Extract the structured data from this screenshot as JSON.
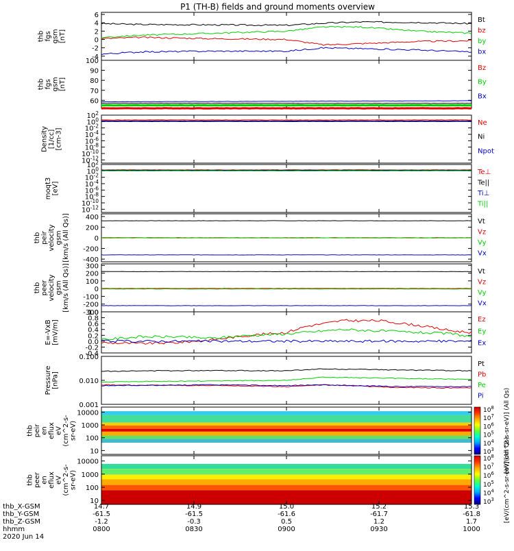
{
  "title": "P1 (TH-B) fields and ground moments overview",
  "footer": {
    "row_labels": [
      "thb_X-GSM",
      "thb_Y-GSM",
      "thb_Z-GSM",
      "hhmm",
      "2020 Jun 14"
    ],
    "columns": [
      {
        "x": "14.7",
        "y": "-61.5",
        "z": "-1.2",
        "hhmm": "0800"
      },
      {
        "x": "14.9",
        "y": "-61.5",
        "z": "-0.3",
        "hhmm": "0830"
      },
      {
        "x": "15.0",
        "y": "-61.6",
        "z": "0.5",
        "hhmm": "0900"
      },
      {
        "x": "15.2",
        "y": "-61.7",
        "z": "1.2",
        "hhmm": "0930"
      },
      {
        "x": "15.3",
        "y": "-61.8",
        "z": "1.7",
        "hhmm": "1000"
      }
    ]
  },
  "colors": {
    "black": "#000000",
    "red": "#e00000",
    "green": "#00d000",
    "blue": "#0000cc"
  },
  "colorbar": {
    "ticks": [
      "10^8",
      "10^7",
      "10^6",
      "10^5",
      "10^4",
      "10^3"
    ],
    "label": "[eV/(cm^2-s-sr-eV)] (All Qs)",
    "panel_labels": [
      "[eV/(cm^2-s-sr-eV)] (All Qs)",
      "[eV/(cm^2-s-sr-eV)] (All Qs)"
    ]
  },
  "chart_data": [
    {
      "type": "line",
      "ylabel": [
        "thb",
        "fgs",
        "gsm",
        "[nT]"
      ],
      "ylim": [
        -5,
        6.5
      ],
      "yticks": [
        "6",
        "4",
        "2",
        "0",
        "-2",
        "-4"
      ],
      "series": [
        {
          "name": "Bt",
          "color": "#000000",
          "x": [
            0,
            0.1,
            0.3,
            0.5,
            0.6,
            0.7,
            0.85,
            1.0
          ],
          "y": [
            3.8,
            3.6,
            3.5,
            3.4,
            3.9,
            4.2,
            4.1,
            3.8
          ]
        },
        {
          "name": "bz",
          "color": "#e00000",
          "x": [
            0,
            0.1,
            0.3,
            0.5,
            0.6,
            0.7,
            0.85,
            1.0
          ],
          "y": [
            0.2,
            0.5,
            0.2,
            0.0,
            -1.3,
            -1.0,
            -0.5,
            -0.3
          ]
        },
        {
          "name": "by",
          "color": "#00d000",
          "x": [
            0,
            0.1,
            0.3,
            0.5,
            0.6,
            0.7,
            0.85,
            1.0
          ],
          "y": [
            0.5,
            1.0,
            1.5,
            2.0,
            3.0,
            3.0,
            2.0,
            1.5
          ]
        },
        {
          "name": "bx",
          "color": "#0000cc",
          "x": [
            0,
            0.1,
            0.3,
            0.5,
            0.6,
            0.7,
            0.85,
            1.0
          ],
          "y": [
            -3.5,
            -3.0,
            -2.8,
            -2.8,
            -2.0,
            -2.2,
            -2.5,
            -3.0
          ]
        }
      ]
    },
    {
      "type": "line",
      "ylabel": [
        "thb",
        "fgs",
        "gsm",
        "[nT]"
      ],
      "ylim": [
        52,
        100
      ],
      "yticks": [
        "100",
        "90",
        "80",
        "70",
        "60"
      ],
      "series": [
        {
          "name": "Bz",
          "color": "#e00000",
          "x": [
            0,
            1
          ],
          "y": [
            52,
            52
          ]
        },
        {
          "name": "By",
          "color": "#00d000",
          "x": [
            0,
            1
          ],
          "y": [
            55,
            55
          ]
        },
        {
          "name": "Bx",
          "color": "#0000cc",
          "x": [
            0,
            0.5,
            1
          ],
          "y": [
            58.5,
            59,
            59.5
          ]
        },
        {
          "name": "",
          "color": "#000000",
          "x": [
            0,
            1
          ],
          "y": [
            57,
            57
          ]
        }
      ]
    },
    {
      "type": "line",
      "ylabel": [
        "Density",
        "[1/cc]",
        "[cm-3]"
      ],
      "ylim": [
        -13,
        2
      ],
      "yticks": [
        "10^2",
        "10^0",
        "10^-2",
        "10^-4",
        "10^-6",
        "10^-8",
        "10^-10",
        "10^-12"
      ],
      "series": [
        {
          "name": "Ne",
          "color": "#e00000",
          "x": [
            0,
            1
          ],
          "y": [
            0.5,
            0.5
          ]
        },
        {
          "name": "Ni",
          "color": "#000000",
          "x": [
            0,
            1
          ],
          "y": [
            0.2,
            0.2
          ]
        },
        {
          "name": "Npot",
          "color": "#0000cc",
          "x": [
            0,
            1
          ],
          "y": [
            0.0,
            0.0
          ]
        }
      ]
    },
    {
      "type": "line",
      "ylabel": [
        "moqt3",
        "[eV]"
      ],
      "ylim": [
        -13,
        2
      ],
      "yticks": [
        "10^2",
        "10^0",
        "10^-2",
        "10^-4",
        "10^-6",
        "10^-8",
        "10^-10",
        "10^-12"
      ],
      "series": [
        {
          "name": "Te⊥",
          "color": "#e00000",
          "x": [
            0,
            1
          ],
          "y": [
            0.3,
            0.3
          ]
        },
        {
          "name": "Te||",
          "color": "#000000",
          "x": [
            0,
            1
          ],
          "y": [
            0.2,
            0.2
          ]
        },
        {
          "name": "Ti⊥",
          "color": "#0000cc",
          "x": [
            0,
            1
          ],
          "y": [
            0.1,
            0.1
          ]
        },
        {
          "name": "Ti||",
          "color": "#00d000",
          "x": [
            0,
            1
          ],
          "y": [
            0.0,
            0.0
          ]
        }
      ]
    },
    {
      "type": "line",
      "ylabel": [
        "thb",
        "peir",
        "velocity",
        "gsm",
        "[km/s (All Qs)]"
      ],
      "ylim": [
        -450,
        450
      ],
      "yticks": [
        "400",
        "200",
        "0",
        "-200",
        "-400"
      ],
      "series": [
        {
          "name": "Vt",
          "color": "#000000",
          "x": [
            0,
            1
          ],
          "y": [
            320,
            320
          ]
        },
        {
          "name": "Vz",
          "color": "#e00000",
          "x": [
            0,
            1
          ],
          "y": [
            2,
            2
          ]
        },
        {
          "name": "Vy",
          "color": "#00d000",
          "x": [
            0,
            1
          ],
          "y": [
            -2,
            -2
          ]
        },
        {
          "name": "Vx",
          "color": "#0000cc",
          "x": [
            0,
            1
          ],
          "y": [
            -320,
            -320
          ]
        }
      ]
    },
    {
      "type": "line",
      "ylabel": [
        "thb",
        "peer",
        "velocity",
        "gsm",
        "[km/s (All Qs)]"
      ],
      "ylim": [
        -300,
        320
      ],
      "yticks": [
        "300",
        "200",
        "100",
        "0",
        "-100",
        "-200",
        "-300"
      ],
      "series": [
        {
          "name": "Vt",
          "color": "#000000",
          "x": [
            0,
            1
          ],
          "y": [
            220,
            220
          ]
        },
        {
          "name": "Vz",
          "color": "#e00000",
          "x": [
            0,
            1
          ],
          "y": [
            2,
            2
          ]
        },
        {
          "name": "Vy",
          "color": "#00d000",
          "x": [
            0,
            1
          ],
          "y": [
            -5,
            -5
          ]
        },
        {
          "name": "Vx",
          "color": "#0000cc",
          "x": [
            0,
            1
          ],
          "y": [
            -220,
            -220
          ]
        }
      ]
    },
    {
      "type": "line",
      "ylabel": [
        "E=-VxB",
        "[mV/m]"
      ],
      "ylim": [
        -0.4,
        1.0
      ],
      "yticks": [
        "1.0",
        "0.8",
        "0.6",
        "0.4",
        "0.2",
        "0.0",
        "-0.2",
        "-0.4"
      ],
      "series": [
        {
          "name": "Ez",
          "color": "#e00000",
          "x": [
            0,
            0.1,
            0.2,
            0.3,
            0.4,
            0.5,
            0.55,
            0.65,
            0.75,
            0.85,
            0.95,
            1.0
          ],
          "y": [
            -0.05,
            -0.08,
            -0.05,
            0.05,
            0.2,
            0.3,
            0.5,
            0.7,
            0.7,
            0.55,
            0.35,
            0.3
          ]
        },
        {
          "name": "Ey",
          "color": "#00d000",
          "x": [
            0,
            0.1,
            0.2,
            0.3,
            0.4,
            0.5,
            0.55,
            0.65,
            0.75,
            0.85,
            0.95,
            1.0
          ],
          "y": [
            0.05,
            0.15,
            0.15,
            0.1,
            0.2,
            0.25,
            0.3,
            0.4,
            0.35,
            0.3,
            0.25,
            0.15
          ]
        },
        {
          "name": "Ex",
          "color": "#0000cc",
          "x": [
            0,
            1
          ],
          "y": [
            0.0,
            0.0
          ]
        }
      ]
    },
    {
      "type": "line",
      "ylabel": [
        "Pressure",
        "[nPa]"
      ],
      "log": true,
      "ylim": [
        0.001,
        0.1
      ],
      "yticks": [
        "0.100",
        "0.010",
        "0.001"
      ],
      "series": [
        {
          "name": "Pt",
          "color": "#000000",
          "x": [
            0,
            0.3,
            0.5,
            0.6,
            0.8,
            1.0
          ],
          "y": [
            0.024,
            0.026,
            0.025,
            0.03,
            0.027,
            0.025
          ]
        },
        {
          "name": "Pb",
          "color": "#e00000",
          "x": [
            0,
            0.3,
            0.5,
            0.6,
            0.8,
            1.0
          ],
          "y": [
            0.0065,
            0.006,
            0.0055,
            0.0065,
            0.005,
            0.0048
          ]
        },
        {
          "name": "Pe",
          "color": "#00d000",
          "x": [
            0,
            0.3,
            0.5,
            0.6,
            0.8,
            1.0
          ],
          "y": [
            0.0085,
            0.0095,
            0.01,
            0.0135,
            0.012,
            0.011
          ]
        },
        {
          "name": "Pi",
          "color": "#0000cc",
          "x": [
            0,
            0.3,
            0.5,
            0.6,
            0.8,
            1.0
          ],
          "y": [
            0.006,
            0.0065,
            0.006,
            0.0065,
            0.0055,
            0.0055
          ]
        }
      ]
    },
    {
      "type": "heatmap",
      "ylabel": [
        "thb",
        "peir",
        "en",
        "eflux",
        "eV",
        "(cm^2-s-",
        "sr-eV)"
      ],
      "log": true,
      "ylim": [
        5,
        25000
      ],
      "yticks": [
        "10000",
        "1000",
        "100",
        "10"
      ]
    },
    {
      "type": "heatmap",
      "ylabel": [
        "thb",
        "peer",
        "en",
        "eflux",
        "eV",
        "(cm^2-s-",
        "sr-eV)"
      ],
      "log": true,
      "ylim": [
        5,
        25000
      ],
      "yticks": [
        "10000",
        "1000",
        "100",
        "10"
      ]
    }
  ]
}
